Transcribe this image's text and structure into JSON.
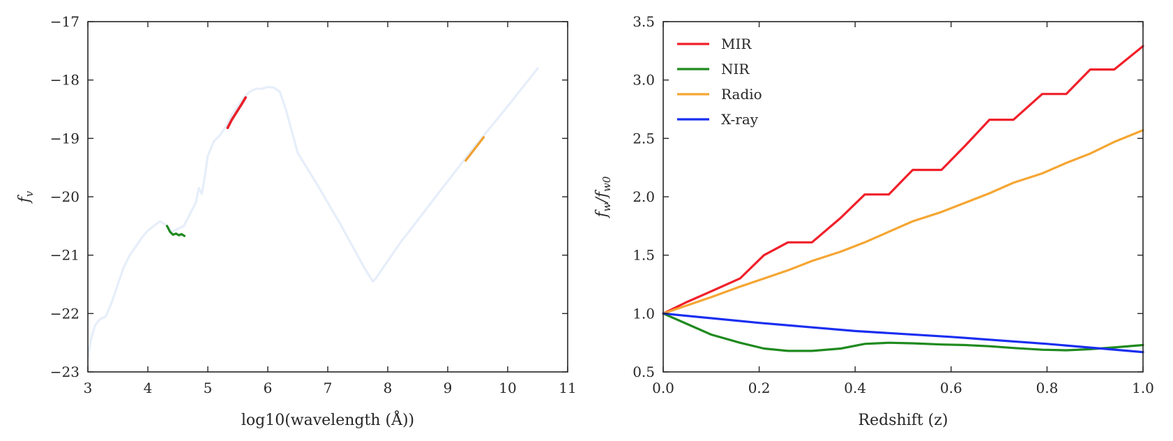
{
  "chart_data": [
    {
      "type": "line",
      "xlabel": "log10(wavelength (Å))",
      "ylabel": "f",
      "ylabel_subscript": "v",
      "xlim": [
        3,
        11
      ],
      "ylim": [
        -23,
        -17
      ],
      "xticks": [
        "3",
        "4",
        "5",
        "6",
        "7",
        "8",
        "9",
        "10",
        "11"
      ],
      "yticks": [
        "−23",
        "−22",
        "−21",
        "−20",
        "−19",
        "−18",
        "−17"
      ],
      "grid": false,
      "series": [
        {
          "role": "sed",
          "color": "#e6eefa",
          "x": [
            3.0,
            3.05,
            3.12,
            3.2,
            3.3,
            3.4,
            3.5,
            3.6,
            3.7,
            3.8,
            3.9,
            4.0,
            4.1,
            4.2,
            4.3,
            4.4,
            4.5,
            4.6,
            4.7,
            4.8,
            4.85,
            4.9,
            4.95,
            5.0,
            5.1,
            5.2,
            5.3,
            5.4,
            5.5,
            5.6,
            5.7,
            5.8,
            5.9,
            6.0,
            6.1,
            6.2,
            6.3,
            6.5,
            6.8,
            7.2,
            7.6,
            7.75,
            7.8,
            8.2,
            8.8,
            9.4,
            10.0,
            10.5
          ],
          "y": [
            -22.75,
            -22.45,
            -22.2,
            -22.1,
            -22.05,
            -21.8,
            -21.5,
            -21.2,
            -21.0,
            -20.85,
            -20.7,
            -20.58,
            -20.5,
            -20.42,
            -20.48,
            -20.6,
            -20.55,
            -20.5,
            -20.3,
            -20.1,
            -19.85,
            -19.95,
            -19.65,
            -19.3,
            -19.05,
            -18.95,
            -18.8,
            -18.6,
            -18.45,
            -18.3,
            -18.2,
            -18.15,
            -18.15,
            -18.12,
            -18.13,
            -18.2,
            -18.5,
            -19.25,
            -19.75,
            -20.45,
            -21.2,
            -21.45,
            -21.4,
            -20.8,
            -20.0,
            -19.2,
            -18.45,
            -17.8
          ]
        },
        {
          "role": "NIR",
          "color": "#1f8a1f",
          "x": [
            4.32,
            4.37,
            4.42,
            4.47,
            4.52,
            4.56,
            4.61
          ],
          "y": [
            -20.5,
            -20.6,
            -20.65,
            -20.63,
            -20.66,
            -20.64,
            -20.67
          ]
        },
        {
          "role": "MIR",
          "color": "#e8202a",
          "x": [
            5.33,
            5.4,
            5.48,
            5.56,
            5.63
          ],
          "y": [
            -18.82,
            -18.68,
            -18.55,
            -18.42,
            -18.3
          ]
        },
        {
          "role": "Radio",
          "color": "#f0a030",
          "x": [
            9.3,
            9.45,
            9.6
          ],
          "y": [
            -19.38,
            -19.18,
            -18.98
          ]
        }
      ]
    },
    {
      "type": "line",
      "xlabel": "Redshift (z)",
      "ylabel": "f",
      "ylabel_subscript": "w",
      "ylabel_denominator": "f",
      "ylabel_denominator_subscript": "w0",
      "xlim": [
        0,
        1
      ],
      "ylim": [
        0.5,
        3.5
      ],
      "xticks": [
        "0.0",
        "0.2",
        "0.4",
        "0.6",
        "0.8",
        "1.0"
      ],
      "yticks": [
        "0.5",
        "1.0",
        "1.5",
        "2.0",
        "2.5",
        "3.0",
        "3.5"
      ],
      "grid": false,
      "legend_placement": "top-left",
      "series": [
        {
          "name": "MIR",
          "color": "#f0202a",
          "x": [
            0.0,
            0.05,
            0.1,
            0.16,
            0.21,
            0.26,
            0.31,
            0.37,
            0.42,
            0.47,
            0.52,
            0.58,
            0.63,
            0.68,
            0.73,
            0.79,
            0.84,
            0.89,
            0.94,
            1.0
          ],
          "y": [
            1.0,
            1.1,
            1.19,
            1.3,
            1.5,
            1.61,
            1.61,
            1.82,
            2.02,
            2.02,
            2.23,
            2.23,
            2.44,
            2.66,
            2.66,
            2.88,
            2.88,
            3.09,
            3.09,
            3.29
          ]
        },
        {
          "name": "NIR",
          "color": "#1f8a1f",
          "x": [
            0.0,
            0.05,
            0.1,
            0.16,
            0.21,
            0.26,
            0.31,
            0.37,
            0.42,
            0.47,
            0.52,
            0.58,
            0.63,
            0.68,
            0.73,
            0.79,
            0.84,
            0.89,
            0.94,
            1.0
          ],
          "y": [
            1.0,
            0.91,
            0.82,
            0.75,
            0.7,
            0.68,
            0.68,
            0.7,
            0.74,
            0.75,
            0.745,
            0.735,
            0.73,
            0.72,
            0.705,
            0.69,
            0.685,
            0.695,
            0.71,
            0.73
          ]
        },
        {
          "name": "Radio",
          "color": "#f5a633",
          "x": [
            0.0,
            0.05,
            0.1,
            0.16,
            0.21,
            0.26,
            0.31,
            0.37,
            0.42,
            0.47,
            0.52,
            0.58,
            0.63,
            0.68,
            0.73,
            0.79,
            0.84,
            0.89,
            0.94,
            1.0
          ],
          "y": [
            1.0,
            1.07,
            1.14,
            1.23,
            1.3,
            1.37,
            1.45,
            1.53,
            1.61,
            1.7,
            1.79,
            1.87,
            1.95,
            2.03,
            2.12,
            2.2,
            2.29,
            2.37,
            2.47,
            2.57
          ]
        },
        {
          "name": "X-ray",
          "color": "#1a2ef0",
          "x": [
            0.0,
            0.2,
            0.4,
            0.6,
            0.8,
            1.0
          ],
          "y": [
            1.0,
            0.92,
            0.85,
            0.8,
            0.74,
            0.67
          ]
        }
      ]
    }
  ]
}
